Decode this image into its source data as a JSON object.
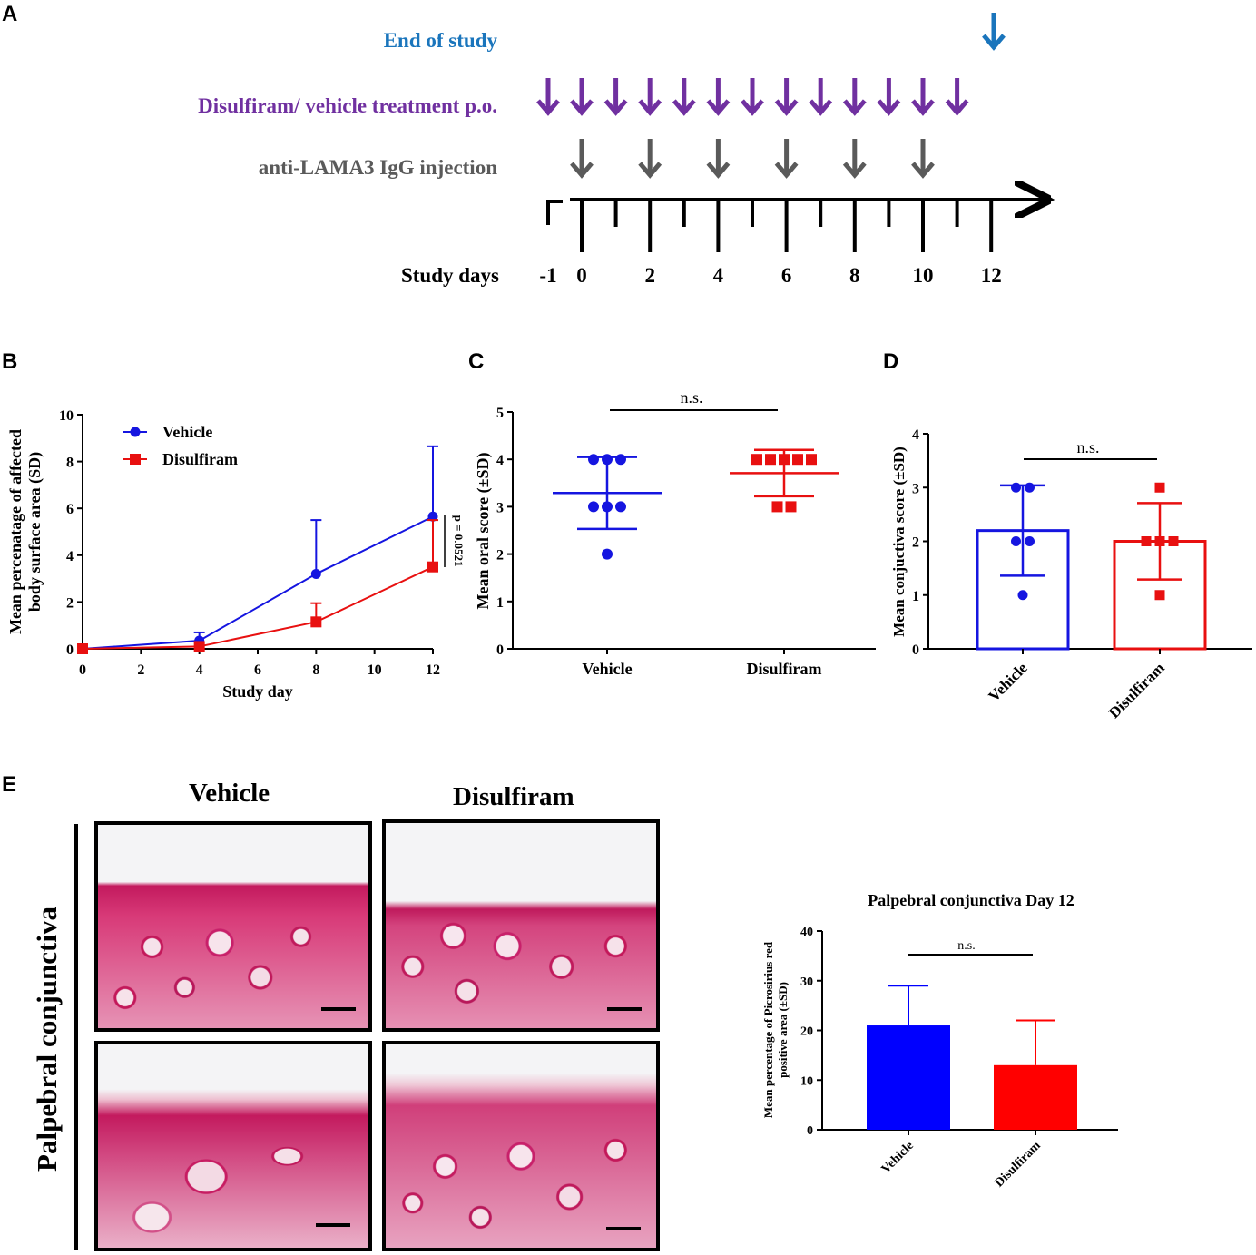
{
  "panels": {
    "a": "A",
    "b": "B",
    "c": "C",
    "d": "D",
    "e": "E"
  },
  "timeline": {
    "end_label": "End of study",
    "treatment_label": "Disulfiram/ vehicle treatment p.o.",
    "injection_label": "anti-LAMA3 IgG injection",
    "axis_label": "Study days",
    "tick_labels": [
      "-1",
      "0",
      "2",
      "4",
      "6",
      "8",
      "10",
      "12"
    ],
    "treatment_days": [
      -1,
      0,
      1,
      2,
      3,
      4,
      5,
      6,
      7,
      8,
      9,
      10,
      11
    ],
    "injection_days": [
      0,
      2,
      4,
      6,
      8,
      10
    ],
    "end_day": 12,
    "colors": {
      "end": "#1a75bc",
      "treatment": "#7030a0",
      "injection": "#5a5a5a"
    }
  },
  "chart_data": [
    {
      "id": "B",
      "type": "line",
      "ylabel": "Mean percenatage of affected body surface area (SD)",
      "xlabel": "Study day",
      "x": [
        0,
        4,
        8,
        12
      ],
      "xticks": [
        "0",
        "2",
        "4",
        "6",
        "8",
        "10",
        "12"
      ],
      "yticks": [
        "0",
        "2",
        "4",
        "6",
        "8",
        "10"
      ],
      "xlim": [
        0,
        12
      ],
      "ylim": [
        0,
        10
      ],
      "legend_position": "top-left",
      "annotation": "p = 0.0521",
      "series": [
        {
          "name": "Vehicle",
          "color": "#1515e0",
          "marker": "circle",
          "values": [
            0.0,
            0.35,
            3.2,
            5.65
          ],
          "sd": [
            0.0,
            0.35,
            2.3,
            3.0
          ]
        },
        {
          "name": "Disulfiram",
          "color": "#e81010",
          "marker": "square",
          "values": [
            0.0,
            0.1,
            1.15,
            3.5
          ],
          "sd": [
            0.0,
            0.0,
            0.8,
            2.0
          ]
        }
      ]
    },
    {
      "id": "C",
      "type": "scatter",
      "ylabel": "Mean oral score (±SD)",
      "categories": [
        "Vehicle",
        "Disulfiram"
      ],
      "yticks": [
        "0",
        "1",
        "2",
        "3",
        "4",
        "5"
      ],
      "ylim": [
        0,
        5
      ],
      "significance": "n.s.",
      "series": [
        {
          "name": "Vehicle",
          "color": "#1515e0",
          "marker": "circle",
          "points": [
            2,
            3,
            3,
            3,
            4,
            4,
            4
          ],
          "mean": 3.29,
          "sd": 0.76
        },
        {
          "name": "Disulfiram",
          "color": "#e81010",
          "marker": "square",
          "points": [
            3,
            3,
            4,
            4,
            4,
            4,
            4
          ],
          "mean": 3.71,
          "sd": 0.49
        }
      ]
    },
    {
      "id": "D",
      "type": "bar",
      "ylabel": "Mean conjuctiva score (±SD)",
      "categories": [
        "Vehicle",
        "Disulfiram"
      ],
      "yticks": [
        "0",
        "1",
        "2",
        "3",
        "4"
      ],
      "ylim": [
        0,
        4
      ],
      "significance": "n.s.",
      "series": [
        {
          "name": "Vehicle",
          "color": "#1515e0",
          "marker": "circle",
          "mean": 2.2,
          "sd": 0.84,
          "points": [
            1,
            2,
            2,
            3,
            3
          ]
        },
        {
          "name": "Disulfiram",
          "color": "#e81010",
          "marker": "square",
          "mean": 2.0,
          "sd": 0.71,
          "points": [
            1,
            2,
            2,
            2,
            3
          ]
        }
      ]
    },
    {
      "id": "E",
      "type": "bar",
      "title": "Palpebral conjunctiva Day 12",
      "ylabel": "Mean percentage of Picrosirius red positive area (±SD)",
      "categories": [
        "Vehicle",
        "Disulfiram"
      ],
      "yticks": [
        "0",
        "10",
        "20",
        "30",
        "40"
      ],
      "ylim": [
        0,
        40
      ],
      "significance": "n.s.",
      "series": [
        {
          "name": "Vehicle",
          "color": "#0000ff",
          "mean": 21,
          "sd": 8
        },
        {
          "name": "Disulfiram",
          "color": "#ff0000",
          "mean": 13,
          "sd": 9
        }
      ]
    }
  ],
  "micrographs": {
    "col_labels": [
      "Vehicle",
      "Disulfiram"
    ],
    "row_label": "Palpebral conjunctiva"
  }
}
